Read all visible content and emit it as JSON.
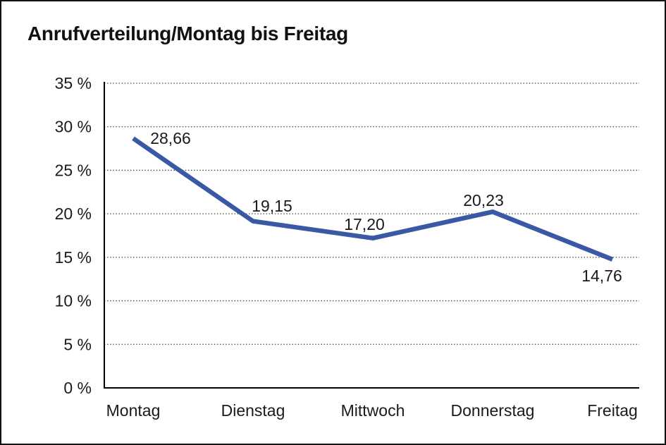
{
  "chart_data": {
    "type": "line",
    "title": "Anrufverteilung/Montag bis Freitag",
    "categories": [
      "Montag",
      "Dienstag",
      "Mittwoch",
      "Donnerstag",
      "Freitag"
    ],
    "values": [
      28.66,
      19.15,
      17.2,
      20.23,
      14.76
    ],
    "data_labels": [
      "28,66",
      "19,15",
      "17,20",
      "20,23",
      "14,76"
    ],
    "xlabel": "",
    "ylabel": "",
    "ylim": [
      0,
      35
    ],
    "ytick_step": 5,
    "ytick_labels": [
      "0 %",
      "5 %",
      "10 %",
      "15 %",
      "20 %",
      "25 %",
      "30 %",
      "35 %"
    ],
    "grid": "horizontal-dotted",
    "legend_position": "none",
    "colors": {
      "line": "#3A59A5",
      "axis": "#000000",
      "gridline": "#444444",
      "text": "#1a1a1a"
    }
  }
}
